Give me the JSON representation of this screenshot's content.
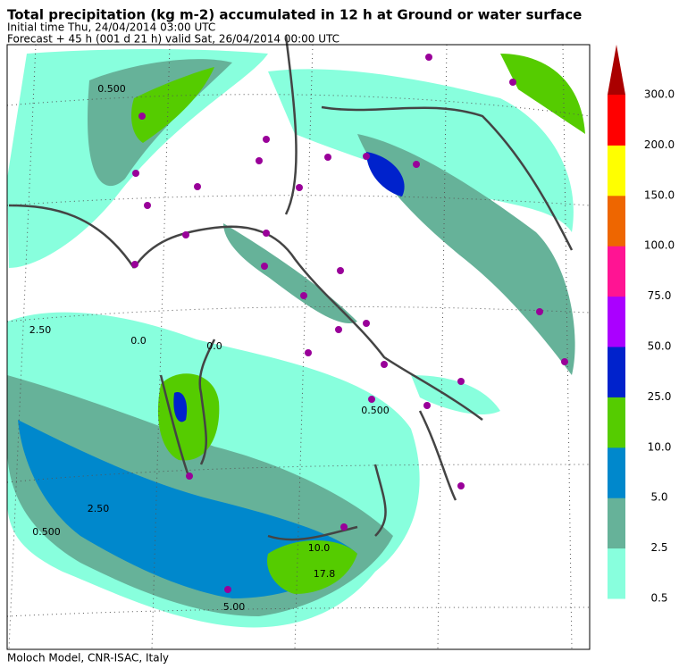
{
  "header": {
    "title": "Total precipitation (kg m-2) accumulated in  12 h at Ground or water surface",
    "initial_time": "Initial time  Thu, 24/04/2014  03:00 UTC",
    "forecast": "Forecast  +  45 h  (001 d 21 h)  valid Sat, 26/04/2014 00:00 UTC"
  },
  "legend": {
    "levels": [
      "0.5",
      "2.5",
      "5.0",
      "10.0",
      "25.0",
      "50.0",
      "75.0",
      "100.0",
      "150.0",
      "200.0",
      "300.0"
    ],
    "colors": [
      "#88ffdd",
      "#66b299",
      "#0088cc",
      "#55cc00",
      "#0022cc",
      "#aa00ff",
      "#ff1493",
      "#ee6600",
      "#ffff00",
      "#ff0000"
    ],
    "arrow_color": "#aa0000"
  },
  "contour_labels": [
    "0.500",
    "2.50",
    "0.0",
    "17.8",
    "10.0",
    "0.500",
    "2.50",
    "0.500",
    "5.00",
    "0.0"
  ],
  "footer": "Moloch Model, CNR-ISAC, Italy"
}
